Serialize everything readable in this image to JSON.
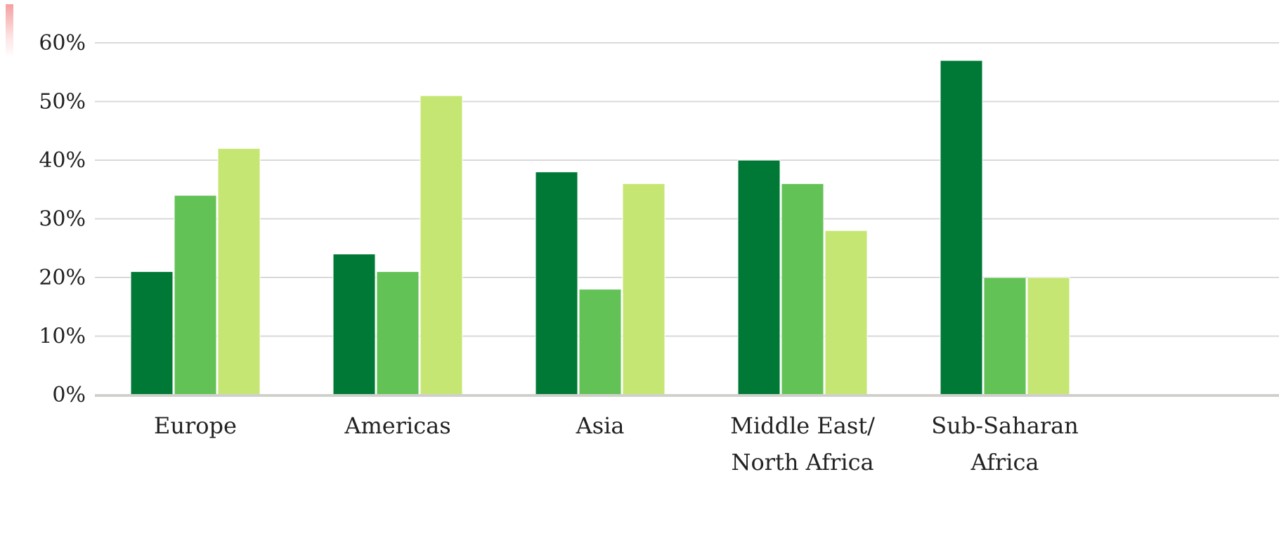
{
  "chart_data": {
    "type": "bar",
    "title": "",
    "xlabel": "",
    "ylabel": "",
    "categories": [
      [
        "Europe"
      ],
      [
        "Americas"
      ],
      [
        "Asia"
      ],
      [
        "Middle East/",
        "North Africa"
      ],
      [
        "Sub-Saharan",
        "Africa"
      ]
    ],
    "series": [
      {
        "values": [
          21,
          24,
          38,
          40,
          57
        ],
        "color": "#007836"
      },
      {
        "values": [
          34,
          21,
          18,
          36,
          20
        ],
        "color": "#62c256"
      },
      {
        "values": [
          42,
          51,
          36,
          28,
          20
        ],
        "color": "#c6e673"
      }
    ],
    "ylim": [
      0,
      60
    ],
    "yticks": [
      0,
      10,
      20,
      30,
      40,
      50,
      60
    ],
    "ytick_labels": [
      "0%",
      "10%",
      "20%",
      "30%",
      "40%",
      "50%",
      "60%"
    ],
    "grid": true,
    "legend": "none",
    "colors": {
      "gridline": "#d9d9d9",
      "baseline": "#d0d0cb",
      "accent_strip": "#f4a0a0"
    }
  }
}
